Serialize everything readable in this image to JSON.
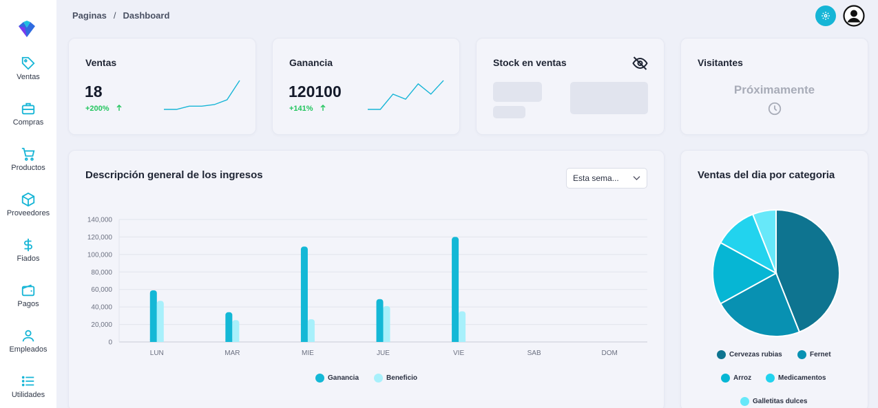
{
  "breadcrumb": {
    "parent": "Paginas",
    "separator": "/",
    "current": "Dashboard"
  },
  "sidebar": {
    "items": [
      {
        "label": "Ventas",
        "icon": "tag-icon"
      },
      {
        "label": "Compras",
        "icon": "briefcase-icon"
      },
      {
        "label": "Productos",
        "icon": "cart-icon"
      },
      {
        "label": "Proveedores",
        "icon": "box-icon"
      },
      {
        "label": "Fiados",
        "icon": "dollar-icon"
      },
      {
        "label": "Pagos",
        "icon": "wallet-icon"
      },
      {
        "label": "Empleados",
        "icon": "user-icon"
      },
      {
        "label": "Utilidades",
        "icon": "list-icon"
      }
    ]
  },
  "stats": {
    "ventas": {
      "title": "Ventas",
      "value": "18",
      "delta": "+200%"
    },
    "ganancia": {
      "title": "Ganancia",
      "value": "120100",
      "delta": "+141%"
    },
    "stock": {
      "title": "Stock en ventas"
    },
    "visitantes": {
      "title": "Visitantes",
      "status": "Próximamente"
    }
  },
  "revenue": {
    "title": "Descripción general de los ingresos",
    "filter": "Esta sema..."
  },
  "pie": {
    "title": "Ventas del dia por categoria"
  },
  "colors": {
    "accent": "#16b5d6",
    "ganancia": "#14b8d6",
    "beneficio": "#a8f0fb",
    "up": "#22c55e"
  },
  "chart_data": [
    {
      "type": "bar",
      "title": "Descripción general de los ingresos",
      "categories": [
        "LUN",
        "MAR",
        "MIE",
        "JUE",
        "VIE",
        "SAB",
        "DOM"
      ],
      "series": [
        {
          "name": "Ganancia",
          "values": [
            59000,
            34000,
            109000,
            49000,
            120000,
            0,
            0
          ]
        },
        {
          "name": "Beneficio",
          "values": [
            47000,
            25000,
            26000,
            41000,
            35000,
            0,
            0
          ]
        }
      ],
      "yticks": [
        "140,000",
        "120,000",
        "100,000",
        "80,000",
        "60,000",
        "40,000",
        "20,000",
        "0"
      ],
      "ylim": [
        0,
        140000
      ],
      "grid": true,
      "legend_position": "bottom"
    },
    {
      "type": "pie",
      "title": "Ventas del dia por categoria",
      "slices": [
        {
          "name": "Cervezas rubias",
          "value": 44,
          "color": "#0e7490"
        },
        {
          "name": "Fernet",
          "value": 23,
          "color": "#0891b2"
        },
        {
          "name": "Arroz",
          "value": 16,
          "color": "#06b6d4"
        },
        {
          "name": "Medicamentos",
          "value": 11,
          "color": "#22d3ee"
        },
        {
          "name": "Galletitas dulces",
          "value": 6,
          "color": "#67e8f9"
        }
      ],
      "legend_position": "bottom"
    },
    {
      "type": "line",
      "title": "",
      "values": [
        0,
        0,
        2,
        2,
        3,
        6,
        18
      ]
    },
    {
      "type": "line",
      "title": "",
      "values": [
        10,
        10,
        55,
        40,
        85,
        55,
        95
      ]
    }
  ]
}
